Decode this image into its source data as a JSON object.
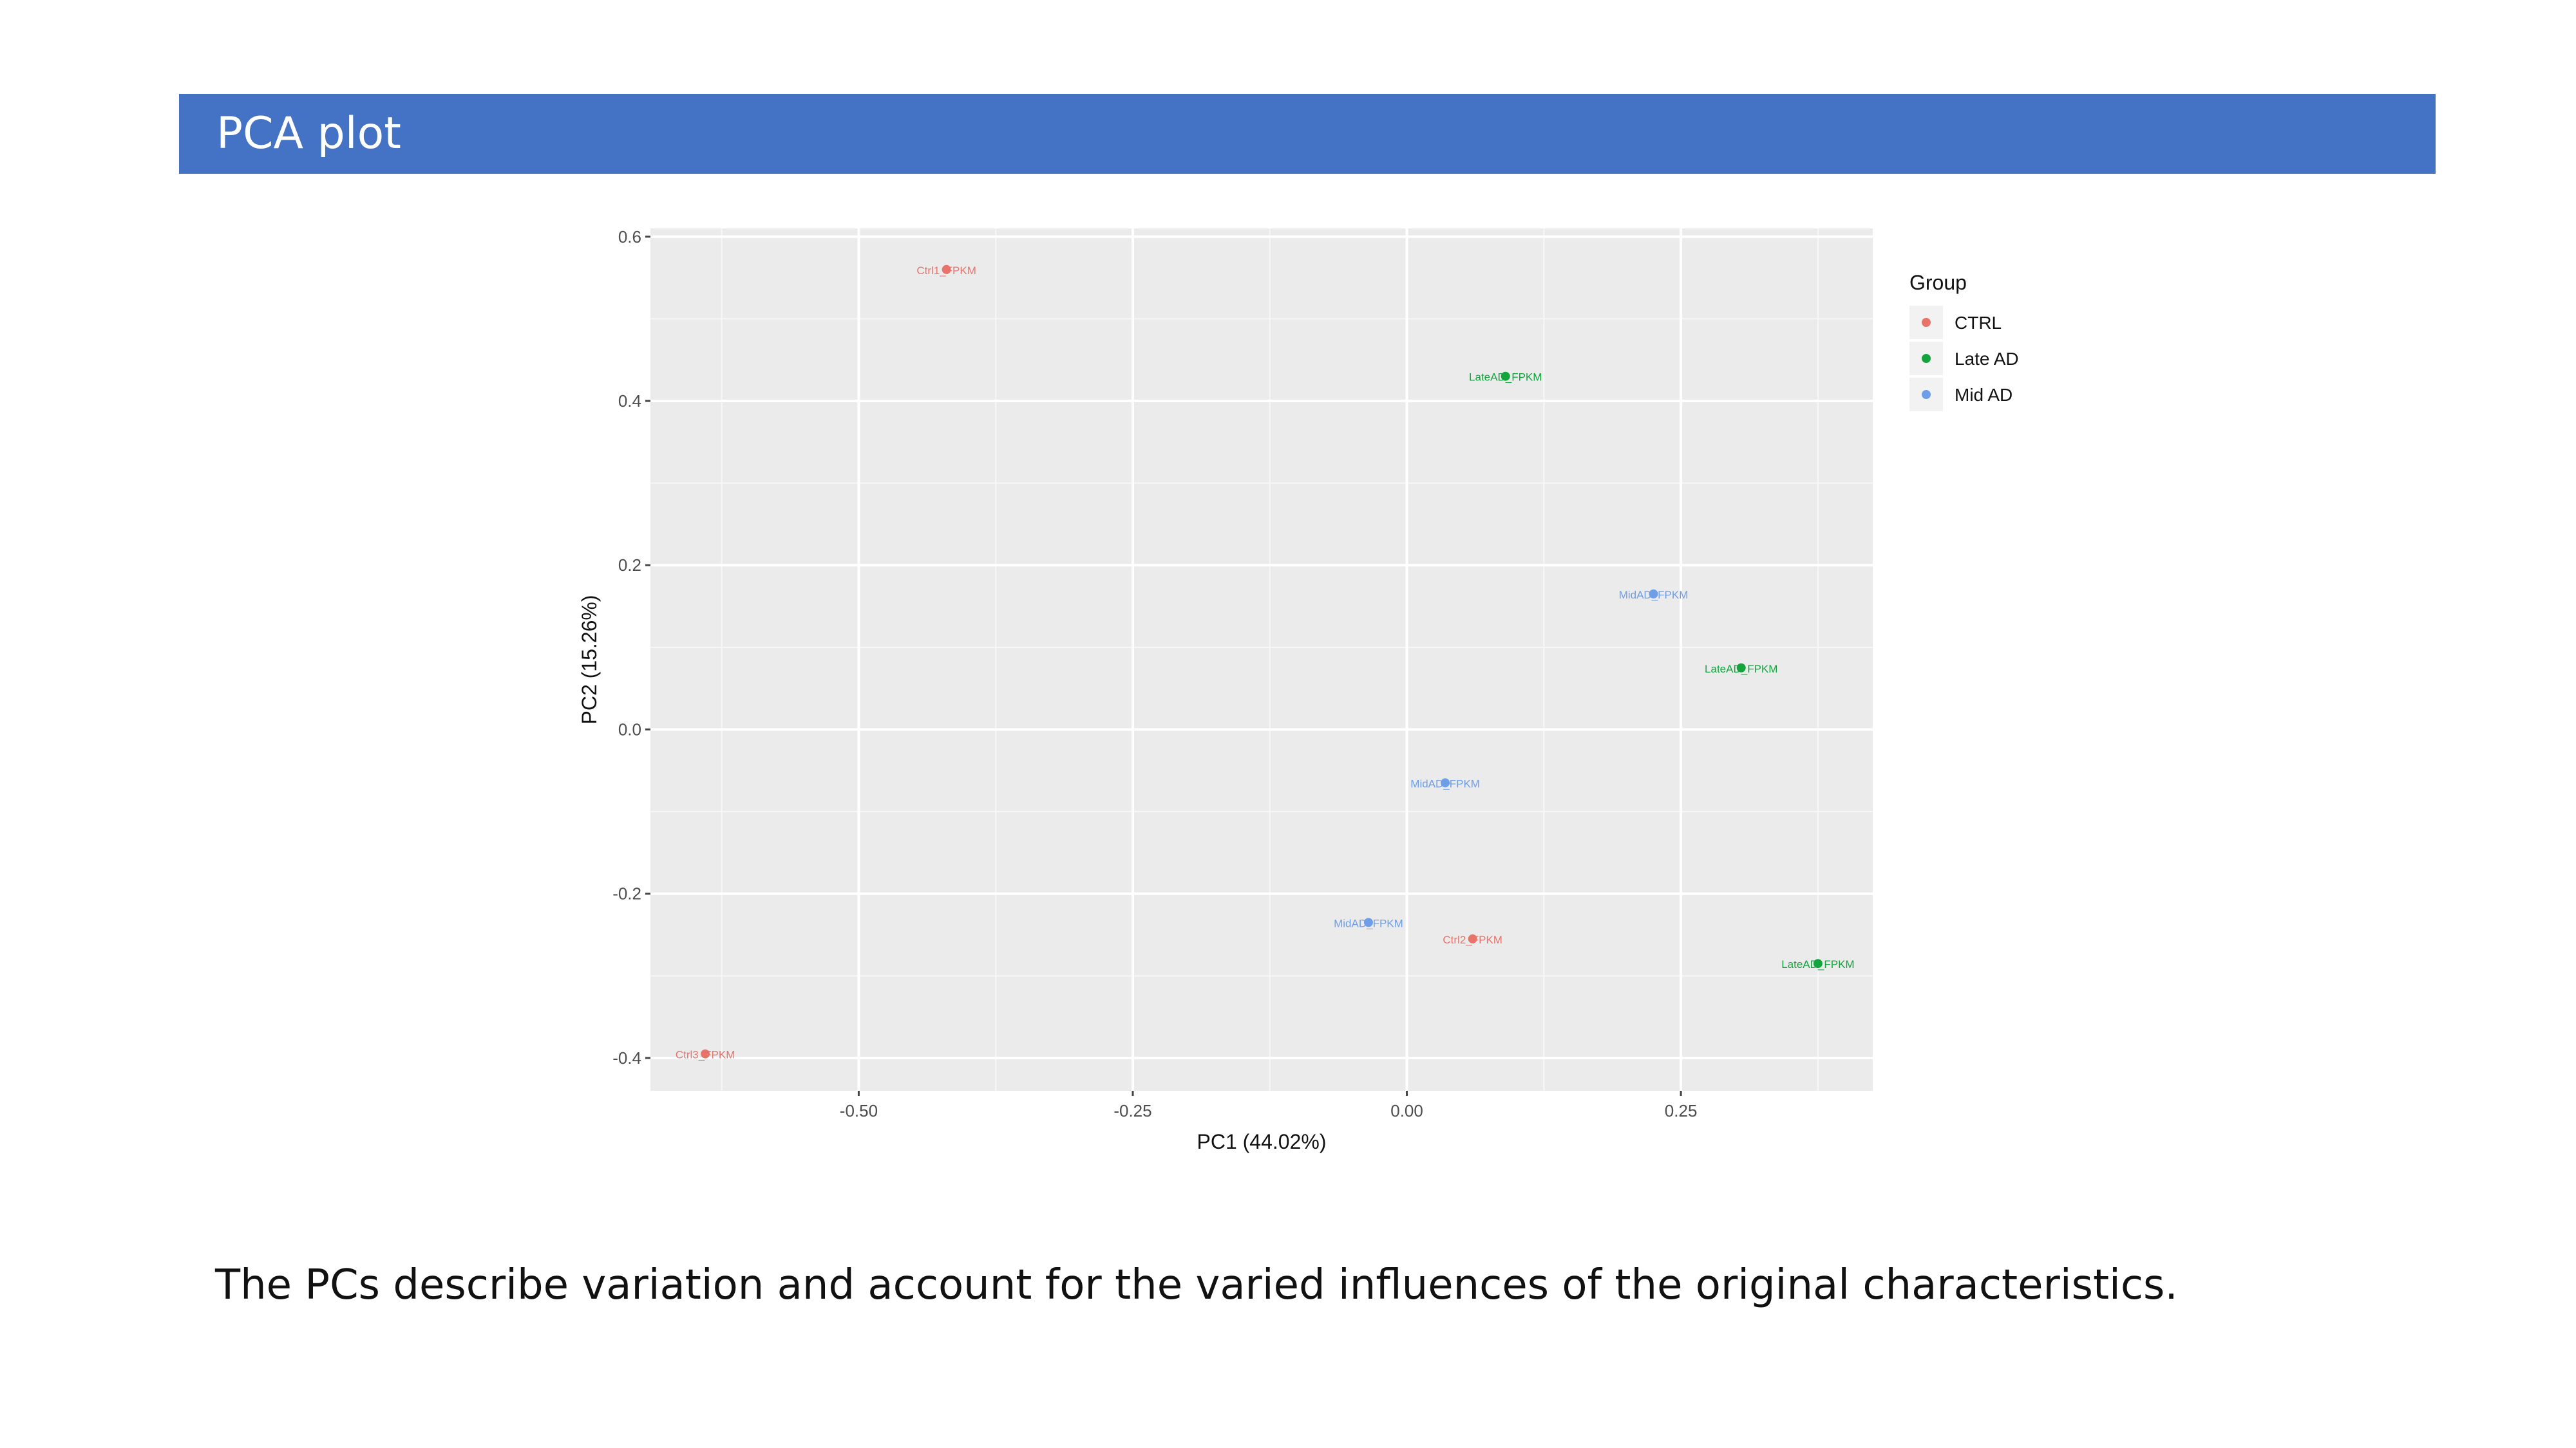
{
  "slide": {
    "title": "PCA plot",
    "caption": "The PCs describe variation and account for the varied influences of the original characteristics."
  },
  "colors": {
    "title_bar": "#4472c4",
    "ctrl": "#e8736b",
    "late_ad": "#13a43e",
    "mid_ad": "#6e9ee8"
  },
  "chart_data": {
    "type": "scatter",
    "xlabel": "PC1 (44.02%)",
    "ylabel": "PC2 (15.26%)",
    "xlim": [
      -0.69,
      0.425
    ],
    "ylim": [
      -0.44,
      0.61
    ],
    "xticks": [
      -0.5,
      -0.25,
      0.0,
      0.25
    ],
    "xtick_labels": [
      "-0.50",
      "-0.25",
      "0.00",
      "0.25"
    ],
    "yticks": [
      -0.4,
      -0.2,
      0.0,
      0.2,
      0.4,
      0.6
    ],
    "ytick_labels": [
      "-0.4",
      "-0.2",
      "0.0",
      "0.2",
      "0.4",
      "0.6"
    ],
    "grid": true,
    "legend": {
      "title": "Group",
      "position": "right",
      "entries": [
        {
          "label": "CTRL",
          "color": "#e8736b"
        },
        {
          "label": "Late AD",
          "color": "#13a43e"
        },
        {
          "label": "Mid AD",
          "color": "#6e9ee8"
        }
      ]
    },
    "series": [
      {
        "name": "CTRL",
        "color": "#e8736b",
        "points": [
          {
            "x": -0.42,
            "y": 0.56,
            "label": "Ctrl1_FPKM"
          },
          {
            "x": 0.06,
            "y": -0.255,
            "label": "Ctrl2_FPKM"
          },
          {
            "x": -0.64,
            "y": -0.395,
            "label": "Ctrl3_FPKM"
          }
        ]
      },
      {
        "name": "Late AD",
        "color": "#13a43e",
        "points": [
          {
            "x": 0.09,
            "y": 0.43,
            "label": "LateAD_FPKM"
          },
          {
            "x": 0.305,
            "y": 0.075,
            "label": "LateAD_FPKM"
          },
          {
            "x": 0.375,
            "y": -0.285,
            "label": "LateAD_FPKM"
          }
        ]
      },
      {
        "name": "Mid AD",
        "color": "#6e9ee8",
        "points": [
          {
            "x": 0.225,
            "y": 0.165,
            "label": "MidAD_FPKM"
          },
          {
            "x": 0.035,
            "y": -0.065,
            "label": "MidAD_FPKM"
          },
          {
            "x": -0.035,
            "y": -0.235,
            "label": "MidAD_FPKM"
          }
        ]
      }
    ]
  }
}
